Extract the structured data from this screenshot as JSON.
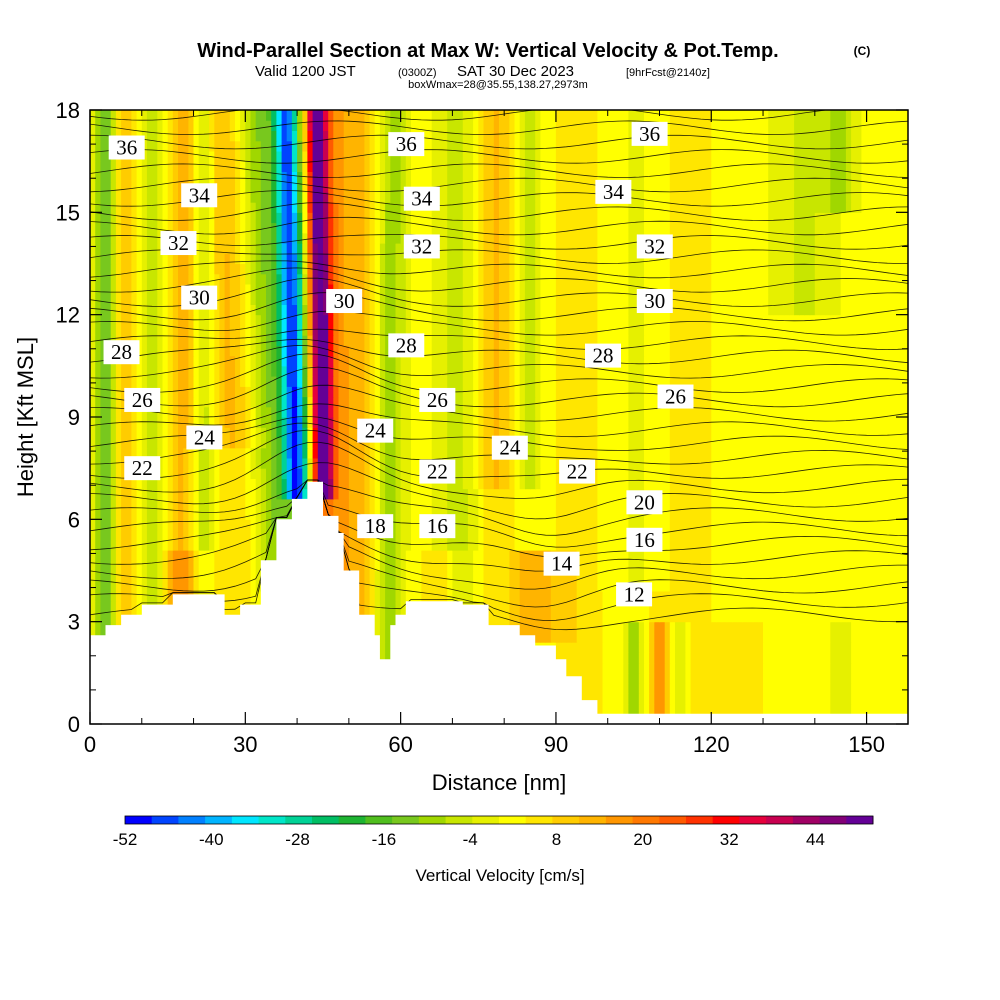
{
  "title": {
    "main": "Wind-Parallel Section at Max W: Vertical Velocity & Pot.Temp.",
    "copyright": "(C)",
    "valid_prefix": "Valid 1200 JST",
    "valid_utc": "(0300Z)",
    "valid_date": "SAT 30 Dec 2023",
    "forecast_info": "[9hrFcst@2140z]",
    "box_info": "boxWmax=28@35.55,138.27,2973m"
  },
  "chart_data": {
    "type": "heatmap",
    "xlabel": "Distance [nm]",
    "ylabel": "Height [Kft MSL]",
    "xlim": [
      0,
      158
    ],
    "ylim": [
      0,
      18
    ],
    "x_ticks": [
      0,
      30,
      60,
      90,
      120,
      150
    ],
    "y_ticks": [
      0,
      3,
      6,
      9,
      12,
      15,
      18
    ],
    "colorbar": {
      "label": "Vertical Velocity [cm/s]",
      "range": [
        -52,
        52
      ],
      "tick_labels": [
        "-52",
        "-40",
        "-28",
        "-16",
        "-4",
        "8",
        "20",
        "32",
        "44"
      ],
      "tick_values": [
        -52,
        -40,
        -28,
        -16,
        -4,
        8,
        20,
        32,
        44
      ],
      "colors": [
        "#0000ff",
        "#0044ff",
        "#0080ff",
        "#00b4ff",
        "#00e6ff",
        "#00e6c8",
        "#00d296",
        "#00be64",
        "#1eb432",
        "#50be1e",
        "#78c81e",
        "#a0d700",
        "#c8e600",
        "#e6f000",
        "#ffff00",
        "#ffe600",
        "#ffcc00",
        "#ffb400",
        "#ff9600",
        "#ff7800",
        "#ff5a00",
        "#ff3200",
        "#ff0000",
        "#e6003c",
        "#c80050",
        "#a00064",
        "#820078",
        "#640096"
      ]
    },
    "theta_contours": {
      "units": "K",
      "labels": [
        {
          "value": 36,
          "x": 4,
          "y": 16.9
        },
        {
          "value": 36,
          "x": 58,
          "y": 17.0
        },
        {
          "value": 36,
          "x": 105,
          "y": 17.3
        },
        {
          "value": 34,
          "x": 18,
          "y": 15.5
        },
        {
          "value": 34,
          "x": 61,
          "y": 15.4
        },
        {
          "value": 34,
          "x": 98,
          "y": 15.6
        },
        {
          "value": 32,
          "x": 14,
          "y": 14.1
        },
        {
          "value": 32,
          "x": 61,
          "y": 14.0
        },
        {
          "value": 32,
          "x": 106,
          "y": 14.0
        },
        {
          "value": 30,
          "x": 18,
          "y": 12.5
        },
        {
          "value": 30,
          "x": 46,
          "y": 12.4
        },
        {
          "value": 30,
          "x": 106,
          "y": 12.4
        },
        {
          "value": 28,
          "x": 3,
          "y": 10.9
        },
        {
          "value": 28,
          "x": 58,
          "y": 11.1
        },
        {
          "value": 28,
          "x": 96,
          "y": 10.8
        },
        {
          "value": 26,
          "x": 7,
          "y": 9.5
        },
        {
          "value": 26,
          "x": 64,
          "y": 9.5
        },
        {
          "value": 26,
          "x": 110,
          "y": 9.6
        },
        {
          "value": 24,
          "x": 19,
          "y": 8.4
        },
        {
          "value": 24,
          "x": 52,
          "y": 8.6
        },
        {
          "value": 24,
          "x": 78,
          "y": 8.1
        },
        {
          "value": 22,
          "x": 7,
          "y": 7.5
        },
        {
          "value": 22,
          "x": 64,
          "y": 7.4
        },
        {
          "value": 22,
          "x": 91,
          "y": 7.4
        },
        {
          "value": 20,
          "x": 104,
          "y": 6.5
        },
        {
          "value": 18,
          "x": 52,
          "y": 5.8
        },
        {
          "value": 16,
          "x": 64,
          "y": 5.8
        },
        {
          "value": 16,
          "x": 104,
          "y": 5.4
        },
        {
          "value": 14,
          "x": 88,
          "y": 4.7
        },
        {
          "value": 12,
          "x": 102,
          "y": 3.8
        }
      ]
    },
    "terrain_profile": [
      [
        0,
        2.6
      ],
      [
        3,
        2.6
      ],
      [
        3,
        2.9
      ],
      [
        6,
        2.9
      ],
      [
        6,
        3.2
      ],
      [
        10,
        3.2
      ],
      [
        10,
        3.5
      ],
      [
        16,
        3.5
      ],
      [
        16,
        3.8
      ],
      [
        26,
        3.8
      ],
      [
        26,
        3.2
      ],
      [
        29,
        3.2
      ],
      [
        29,
        3.5
      ],
      [
        33,
        3.5
      ],
      [
        33,
        4.8
      ],
      [
        36,
        4.8
      ],
      [
        36,
        6.0
      ],
      [
        39,
        6.0
      ],
      [
        39,
        6.6
      ],
      [
        42,
        6.6
      ],
      [
        42,
        7.1
      ],
      [
        45,
        7.1
      ],
      [
        45,
        6.1
      ],
      [
        48,
        6.1
      ],
      [
        48,
        5.6
      ],
      [
        49,
        5.6
      ],
      [
        49,
        4.5
      ],
      [
        52,
        4.5
      ],
      [
        52,
        3.2
      ],
      [
        55,
        3.2
      ],
      [
        55,
        2.6
      ],
      [
        56,
        2.6
      ],
      [
        56,
        1.9
      ],
      [
        58,
        1.9
      ],
      [
        58,
        2.9
      ],
      [
        59,
        2.9
      ],
      [
        59,
        3.2
      ],
      [
        61,
        3.2
      ],
      [
        61,
        3.6
      ],
      [
        72,
        3.6
      ],
      [
        72,
        3.5
      ],
      [
        77,
        3.5
      ],
      [
        77,
        2.9
      ],
      [
        83,
        2.9
      ],
      [
        83,
        2.6
      ],
      [
        86,
        2.6
      ],
      [
        86,
        2.3
      ],
      [
        90,
        2.3
      ],
      [
        90,
        1.9
      ],
      [
        92,
        1.9
      ],
      [
        92,
        1.4
      ],
      [
        95,
        1.4
      ],
      [
        95,
        0.7
      ],
      [
        98,
        0.7
      ],
      [
        98,
        0.3
      ],
      [
        158,
        0.3
      ]
    ]
  }
}
